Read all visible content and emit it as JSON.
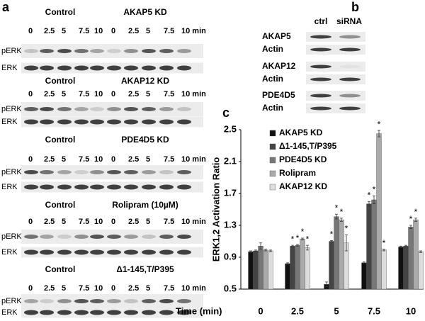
{
  "panel_a": {
    "label": "a",
    "blots": [
      {
        "left": "Control",
        "right": "AKAP5 KD",
        "lanes": [
          "0",
          "2.5",
          "5",
          "7.5",
          "10",
          "0",
          "2.5",
          "5",
          "7.5",
          "10 min"
        ],
        "rows": [
          "pERK",
          "ERK"
        ]
      },
      {
        "left": "Control",
        "right": "AKAP12 KD",
        "lanes": [
          "0",
          "2.5",
          "5",
          "7.5",
          "10",
          "0",
          "2.5",
          "5",
          "7.5",
          "10 min"
        ],
        "rows": [
          "pERK",
          "ERK"
        ]
      },
      {
        "left": "Control",
        "right": "PDE4D5 KD",
        "lanes": [
          "0",
          "2.5",
          "5",
          "7.5",
          "10",
          "0",
          "2.5",
          "5",
          "7.5",
          "10 min"
        ],
        "rows": [
          "pERK",
          "ERK"
        ]
      },
      {
        "left": "Control",
        "right": "Rolipram (10µM)",
        "lanes": [
          "0",
          "2.5",
          "5",
          "7.5",
          "10",
          "0",
          "2.5",
          "5",
          "7.5",
          "10 min"
        ],
        "rows": [
          "pERK",
          "ERK"
        ]
      },
      {
        "left": "Control",
        "right": "Δ1-145,T/P395",
        "lanes": [
          "0",
          "2.5",
          "5",
          "7.5",
          "10",
          "0",
          "2.5",
          "5",
          "7.5",
          "10 min"
        ],
        "rows": [
          "pERK",
          "ERK"
        ]
      }
    ]
  },
  "panel_b": {
    "label": "b",
    "columns": [
      "ctrl",
      "siRNA"
    ],
    "rows": [
      [
        "AKAP5",
        "Actin"
      ],
      [
        "AKAP12",
        "Actin"
      ],
      [
        "PDE4D5",
        "Actin"
      ]
    ]
  },
  "panel_c": {
    "label": "c"
  },
  "chart_data": {
    "type": "bar",
    "y_label": "ERK1,2 Activation Ratio",
    "x_label": "Time (min)",
    "categories": [
      "0",
      "2.5",
      "5",
      "7.5",
      "10"
    ],
    "ylim": [
      0.5,
      2.5
    ],
    "yticks": [
      0.5,
      0.9,
      1.3,
      1.7,
      2.1,
      2.5
    ],
    "series": [
      {
        "name": "AKAP5 KD",
        "color": "#111111",
        "values": [
          0.97,
          0.82,
          0.56,
          0.83,
          1.03
        ],
        "errors": [
          0.01,
          0.01,
          0.03,
          0.01,
          0.01
        ],
        "marks": [
          null,
          null,
          null,
          null,
          null
        ]
      },
      {
        "name": "Δ1-145,T/P395",
        "color": "#444444",
        "values": [
          0.98,
          1.04,
          1.1,
          1.57,
          1.04
        ],
        "errors": [
          0.01,
          0.01,
          0.01,
          0.03,
          0.01
        ],
        "marks": [
          null,
          "*",
          "*",
          "*",
          null
        ]
      },
      {
        "name": "PDE4D5 KD",
        "color": "#777777",
        "values": [
          1.04,
          1.05,
          1.41,
          1.62,
          1.28
        ],
        "errors": [
          0.04,
          0.01,
          0.03,
          0.05,
          0.02
        ],
        "marks": [
          null,
          "*",
          "*",
          "*",
          "*"
        ]
      },
      {
        "name": "Rolipram",
        "color": "#aaaaaa",
        "values": [
          0.99,
          1.13,
          1.37,
          2.45,
          1.37
        ],
        "errors": [
          0.01,
          0.01,
          0.02,
          0.04,
          0.02
        ],
        "marks": [
          null,
          "*",
          "*",
          "*",
          "*"
        ]
      },
      {
        "name": "AKAP12 KD",
        "color": "#dddddd",
        "values": [
          0.98,
          1.02,
          1.08,
          0.99,
          0.97
        ],
        "errors": [
          0.01,
          0.03,
          0.1,
          0.01,
          0.01
        ],
        "marks": [
          null,
          "*",
          "*",
          "*",
          null
        ]
      }
    ]
  }
}
